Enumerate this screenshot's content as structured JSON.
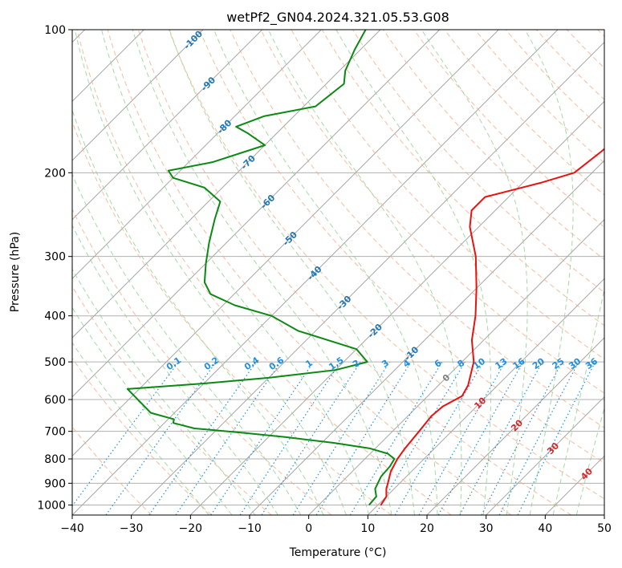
{
  "chart_data": {
    "type": "skew-t",
    "title": "wetPf2_GN04.2024.321.05.53.G08",
    "xlabel": "Temperature (°C)",
    "ylabel": "Pressure (hPa)",
    "xlim": [
      -40,
      50
    ],
    "ylim": [
      1050,
      100
    ],
    "y_scale": "log",
    "grid": true,
    "x_ticks": [
      -40,
      -30,
      -20,
      -10,
      0,
      10,
      20,
      30,
      40,
      50
    ],
    "x_tick_labels": [
      "−40",
      "−30",
      "−20",
      "−10",
      "0",
      "10",
      "20",
      "30",
      "40",
      "50"
    ],
    "y_ticks": [
      100,
      200,
      300,
      400,
      500,
      600,
      700,
      800,
      900,
      1000
    ],
    "y_tick_labels": [
      "100",
      "200",
      "300",
      "400",
      "500",
      "600",
      "700",
      "800",
      "900",
      "1000"
    ],
    "colors": {
      "temperature": "#e8120f",
      "dewpoint": "#0a8a12",
      "isotherm": "#a6a6a6",
      "dry_adiabat": "#f4a582",
      "moist_adiabat": "#8fcf8f",
      "mixing_ratio": "#1f8fe0",
      "isotherm_label": "#1f77b4",
      "zero_label": "#808080",
      "positive_label": "#d62728",
      "hgrid": "#b0b0b0"
    },
    "isotherm_labels": [
      "-100",
      "-90",
      "-80",
      "-70",
      "-60",
      "-50",
      "-40",
      "-30",
      "-20",
      "-10",
      "0",
      "10",
      "20",
      "30",
      "40"
    ],
    "isotherm_label_pressures": [
      105,
      130,
      160,
      190,
      230,
      275,
      325,
      375,
      430,
      480,
      540,
      610,
      680,
      760,
      860
    ],
    "mixing_ratio_labels": [
      "0.1",
      "0.2",
      "0.4",
      "0.6",
      "1",
      "1.5",
      "2",
      "3",
      "4",
      "6",
      "8",
      "10",
      "13",
      "16",
      "20",
      "25",
      "30",
      "36"
    ],
    "series": [
      {
        "name": "temperature",
        "points": [
          {
            "p": 1000,
            "t": 10.5
          },
          {
            "p": 960,
            "t": 10.0
          },
          {
            "p": 925,
            "t": 8.7
          },
          {
            "p": 900,
            "t": 8.0
          },
          {
            "p": 850,
            "t": 6.5
          },
          {
            "p": 800,
            "t": 5.5
          },
          {
            "p": 760,
            "t": 5.0
          },
          {
            "p": 700,
            "t": 4.5
          },
          {
            "p": 650,
            "t": 4.0
          },
          {
            "p": 620,
            "t": 4.3
          },
          {
            "p": 590,
            "t": 5.8
          },
          {
            "p": 560,
            "t": 5.0
          },
          {
            "p": 500,
            "t": 2.0
          },
          {
            "p": 450,
            "t": -2.0
          },
          {
            "p": 400,
            "t": -5.5
          },
          {
            "p": 350,
            "t": -10.0
          },
          {
            "p": 300,
            "t": -15.5
          },
          {
            "p": 260,
            "t": -21.5
          },
          {
            "p": 240,
            "t": -24.0
          },
          {
            "p": 225,
            "t": -24.0
          },
          {
            "p": 210,
            "t": -17.0
          },
          {
            "p": 200,
            "t": -13.0
          },
          {
            "p": 180,
            "t": -12.0
          },
          {
            "p": 160,
            "t": -11.5
          },
          {
            "p": 140,
            "t": -12.0
          },
          {
            "p": 120,
            "t": -15.0
          },
          {
            "p": 100,
            "t": -17.5
          }
        ]
      },
      {
        "name": "dewpoint",
        "points": [
          {
            "p": 1000,
            "t": 8.5
          },
          {
            "p": 960,
            "t": 8.3
          },
          {
            "p": 925,
            "t": 6.8
          },
          {
            "p": 900,
            "t": 6.3
          },
          {
            "p": 870,
            "t": 5.7
          },
          {
            "p": 830,
            "t": 5.5
          },
          {
            "p": 800,
            "t": 5.0
          },
          {
            "p": 780,
            "t": 3.0
          },
          {
            "p": 760,
            "t": -1.0
          },
          {
            "p": 740,
            "t": -8.0
          },
          {
            "p": 720,
            "t": -17.0
          },
          {
            "p": 705,
            "t": -25.0
          },
          {
            "p": 690,
            "t": -34.0
          },
          {
            "p": 678,
            "t": -37.0
          },
          {
            "p": 672,
            "t": -38.5
          },
          {
            "p": 660,
            "t": -39.0
          },
          {
            "p": 640,
            "t": -44.0
          },
          {
            "p": 570,
            "t": -52.0
          },
          {
            "p": 555,
            "t": -40.0
          },
          {
            "p": 540,
            "t": -30.0
          },
          {
            "p": 520,
            "t": -20.0
          },
          {
            "p": 500,
            "t": -16.0
          },
          {
            "p": 470,
            "t": -20.0
          },
          {
            "p": 430,
            "t": -33.0
          },
          {
            "p": 400,
            "t": -40.0
          },
          {
            "p": 380,
            "t": -48.0
          },
          {
            "p": 360,
            "t": -54.0
          },
          {
            "p": 340,
            "t": -57.0
          },
          {
            "p": 310,
            "t": -60.0
          },
          {
            "p": 280,
            "t": -63.0
          },
          {
            "p": 250,
            "t": -66.0
          },
          {
            "p": 230,
            "t": -68.0
          },
          {
            "p": 215,
            "t": -73.0
          },
          {
            "p": 205,
            "t": -80.0
          },
          {
            "p": 198,
            "t": -82.0
          },
          {
            "p": 190,
            "t": -76.0
          },
          {
            "p": 175,
            "t": -70.0
          },
          {
            "p": 165,
            "t": -75.0
          },
          {
            "p": 160,
            "t": -78.0
          },
          {
            "p": 152,
            "t": -75.0
          },
          {
            "p": 145,
            "t": -68.0
          },
          {
            "p": 130,
            "t": -67.0
          },
          {
            "p": 122,
            "t": -69.0
          },
          {
            "p": 110,
            "t": -71.0
          },
          {
            "p": 100,
            "t": -72.5
          }
        ]
      }
    ]
  }
}
